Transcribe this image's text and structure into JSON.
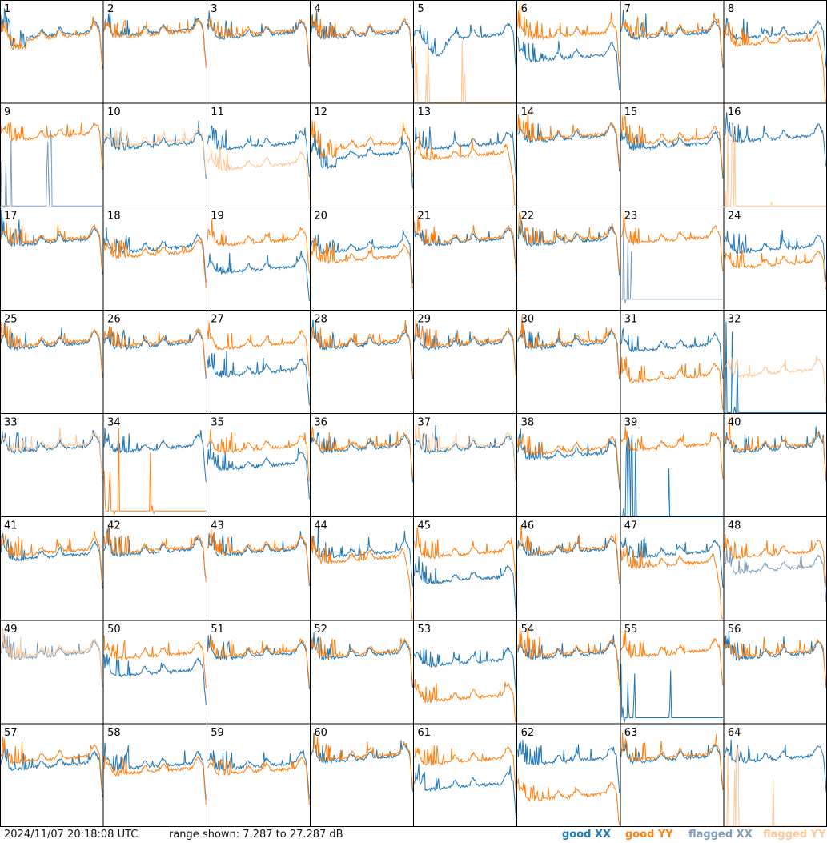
{
  "chart_data": {
    "type": "line",
    "layout": "8x8 small multiples of per-tile spectra",
    "timestamp": "2024/11/07 20:18:08 UTC",
    "range_text": "range shown: 7.287 to 27.287 dB",
    "range_db": [
      7.287,
      27.287
    ],
    "legend": [
      {
        "label": "good XX",
        "color": "#1f77b4"
      },
      {
        "label": "good YY",
        "color": "#ff7f0e"
      },
      {
        "label": "flagged XX",
        "color": "#7f9db9"
      },
      {
        "label": "flagged YY",
        "color": "#ffc896"
      }
    ],
    "tiles": [
      {
        "id": "1",
        "xx": "good",
        "yy": "good",
        "xx_level": 0.62,
        "yy_level": 0.6,
        "shape": "dip_then_flat_drop"
      },
      {
        "id": "2",
        "xx": "good",
        "yy": "good",
        "xx_level": 0.65,
        "yy_level": 0.63,
        "shape": "flat"
      },
      {
        "id": "3",
        "xx": "good",
        "yy": "good",
        "xx_level": 0.62,
        "yy_level": 0.64,
        "shape": "bumps"
      },
      {
        "id": "4",
        "xx": "good",
        "yy": "good",
        "xx_level": 0.62,
        "yy_level": 0.64,
        "shape": "bumps"
      },
      {
        "id": "5",
        "xx": "good",
        "yy": "flagged",
        "xx_level": 0.6,
        "yy_level": 0.0,
        "shape": "xx_dip"
      },
      {
        "id": "6",
        "xx": "good",
        "yy": "good",
        "xx_level": 0.4,
        "yy_level": 0.62,
        "shape": "xx_low"
      },
      {
        "id": "7",
        "xx": "good",
        "yy": "good",
        "xx_level": 0.62,
        "yy_level": 0.64,
        "shape": "bumps"
      },
      {
        "id": "8",
        "xx": "good",
        "yy": "good",
        "xx_level": 0.62,
        "yy_level": 0.55,
        "shape": "yy_drop_end"
      },
      {
        "id": "9",
        "xx": "flagged",
        "yy": "good",
        "xx_level": 0.0,
        "yy_level": 0.64,
        "shape": "xx_spikes"
      },
      {
        "id": "10",
        "xx": "good",
        "yy": "flagged",
        "xx_level": 0.55,
        "yy_level": 0.58,
        "shape": "flat"
      },
      {
        "id": "11",
        "xx": "good",
        "yy": "flagged",
        "xx_level": 0.55,
        "yy_level": 0.35,
        "shape": "yy_low"
      },
      {
        "id": "12",
        "xx": "good",
        "yy": "good",
        "xx_level": 0.45,
        "yy_level": 0.55,
        "shape": "dip_then_flat_drop"
      },
      {
        "id": "13",
        "xx": "good",
        "yy": "good",
        "xx_level": 0.55,
        "yy_level": 0.45,
        "shape": "yy_drop_end"
      },
      {
        "id": "14",
        "xx": "good",
        "yy": "good",
        "xx_level": 0.62,
        "yy_level": 0.64,
        "shape": "bumps"
      },
      {
        "id": "15",
        "xx": "good",
        "yy": "good",
        "xx_level": 0.55,
        "yy_level": 0.6,
        "shape": "bumps"
      },
      {
        "id": "16",
        "xx": "good",
        "yy": "flagged",
        "xx_level": 0.62,
        "yy_level": 0.0,
        "shape": "yy_spike"
      },
      {
        "id": "17",
        "xx": "good",
        "yy": "good",
        "xx_level": 0.62,
        "yy_level": 0.64,
        "shape": "bumps"
      },
      {
        "id": "18",
        "xx": "good",
        "yy": "good",
        "xx_level": 0.55,
        "yy_level": 0.5,
        "shape": "bumps"
      },
      {
        "id": "19",
        "xx": "good",
        "yy": "good",
        "xx_level": 0.35,
        "yy_level": 0.62,
        "shape": "xx_low"
      },
      {
        "id": "20",
        "xx": "good",
        "yy": "good",
        "xx_level": 0.55,
        "yy_level": 0.45,
        "shape": "bumps"
      },
      {
        "id": "21",
        "xx": "good",
        "yy": "good",
        "xx_level": 0.62,
        "yy_level": 0.64,
        "shape": "bumps"
      },
      {
        "id": "22",
        "xx": "good",
        "yy": "good",
        "xx_level": 0.62,
        "yy_level": 0.64,
        "shape": "bumps"
      },
      {
        "id": "23",
        "xx": "flagged",
        "yy": "good",
        "xx_level": 0.1,
        "yy_level": 0.64,
        "shape": "xx_spikes"
      },
      {
        "id": "24",
        "xx": "good",
        "yy": "good",
        "xx_level": 0.55,
        "yy_level": 0.4,
        "shape": "yy_low"
      },
      {
        "id": "25",
        "xx": "good",
        "yy": "good",
        "xx_level": 0.62,
        "yy_level": 0.64,
        "shape": "bumps"
      },
      {
        "id": "26",
        "xx": "good",
        "yy": "good",
        "xx_level": 0.62,
        "yy_level": 0.64,
        "shape": "bumps"
      },
      {
        "id": "27",
        "xx": "good",
        "yy": "good",
        "xx_level": 0.35,
        "yy_level": 0.62,
        "shape": "xx_low"
      },
      {
        "id": "28",
        "xx": "good",
        "yy": "good",
        "xx_level": 0.62,
        "yy_level": 0.64,
        "shape": "bumps"
      },
      {
        "id": "29",
        "xx": "good",
        "yy": "good",
        "xx_level": 0.62,
        "yy_level": 0.64,
        "shape": "bumps"
      },
      {
        "id": "30",
        "xx": "good",
        "yy": "good",
        "xx_level": 0.62,
        "yy_level": 0.64,
        "shape": "bumps"
      },
      {
        "id": "31",
        "xx": "good",
        "yy": "good",
        "xx_level": 0.6,
        "yy_level": 0.3,
        "shape": "yy_low"
      },
      {
        "id": "32",
        "xx": "good",
        "yy": "flagged",
        "xx_level": 0.0,
        "yy_level": 0.35,
        "shape": "yy_flag_bumps"
      },
      {
        "id": "33",
        "xx": "good",
        "yy": "flagged",
        "xx_level": 0.62,
        "yy_level": 0.64,
        "shape": "bumps"
      },
      {
        "id": "34",
        "xx": "good",
        "yy": "good",
        "xx_level": 0.62,
        "yy_level": 0.05,
        "shape": "yy_spikes"
      },
      {
        "id": "35",
        "xx": "good",
        "yy": "good",
        "xx_level": 0.45,
        "yy_level": 0.62,
        "shape": "xx_low"
      },
      {
        "id": "36",
        "xx": "good",
        "yy": "good",
        "xx_level": 0.62,
        "yy_level": 0.64,
        "shape": "bumps"
      },
      {
        "id": "37",
        "xx": "good",
        "yy": "flagged",
        "xx_level": 0.62,
        "yy_level": 0.64,
        "shape": "bumps"
      },
      {
        "id": "38",
        "xx": "good",
        "yy": "good",
        "xx_level": 0.55,
        "yy_level": 0.6,
        "shape": "bumps"
      },
      {
        "id": "39",
        "xx": "good",
        "yy": "good",
        "xx_level": 0.0,
        "yy_level": 0.64,
        "shape": "xx_spike"
      },
      {
        "id": "40",
        "xx": "good",
        "yy": "good",
        "xx_level": 0.62,
        "yy_level": 0.64,
        "shape": "bumps"
      },
      {
        "id": "41",
        "xx": "good",
        "yy": "good",
        "xx_level": 0.58,
        "yy_level": 0.62,
        "shape": "bumps"
      },
      {
        "id": "42",
        "xx": "good",
        "yy": "good",
        "xx_level": 0.62,
        "yy_level": 0.64,
        "shape": "bumps"
      },
      {
        "id": "43",
        "xx": "good",
        "yy": "good",
        "xx_level": 0.62,
        "yy_level": 0.64,
        "shape": "bumps"
      },
      {
        "id": "44",
        "xx": "good",
        "yy": "good",
        "xx_level": 0.6,
        "yy_level": 0.55,
        "shape": "yy_drop_end"
      },
      {
        "id": "45",
        "xx": "good",
        "yy": "good",
        "xx_level": 0.35,
        "yy_level": 0.6,
        "shape": "xx_low"
      },
      {
        "id": "46",
        "xx": "good",
        "yy": "good",
        "xx_level": 0.62,
        "yy_level": 0.64,
        "shape": "bumps"
      },
      {
        "id": "47",
        "xx": "good",
        "yy": "good",
        "xx_level": 0.6,
        "yy_level": 0.5,
        "shape": "yy_drop_end"
      },
      {
        "id": "48",
        "xx": "flagged",
        "yy": "good",
        "xx_level": 0.45,
        "yy_level": 0.6,
        "shape": "bumps"
      },
      {
        "id": "49",
        "xx": "flagged",
        "yy": "flagged",
        "xx_level": 0.62,
        "yy_level": 0.64,
        "shape": "bumps"
      },
      {
        "id": "50",
        "xx": "good",
        "yy": "good",
        "xx_level": 0.45,
        "yy_level": 0.62,
        "shape": "xx_low"
      },
      {
        "id": "51",
        "xx": "good",
        "yy": "good",
        "xx_level": 0.62,
        "yy_level": 0.64,
        "shape": "bumps"
      },
      {
        "id": "52",
        "xx": "good",
        "yy": "good",
        "xx_level": 0.62,
        "yy_level": 0.64,
        "shape": "bumps"
      },
      {
        "id": "53",
        "xx": "good",
        "yy": "good",
        "xx_level": 0.55,
        "yy_level": 0.2,
        "shape": "yy_low"
      },
      {
        "id": "54",
        "xx": "good",
        "yy": "good",
        "xx_level": 0.62,
        "yy_level": 0.64,
        "shape": "bumps"
      },
      {
        "id": "55",
        "xx": "good",
        "yy": "good",
        "xx_level": 0.05,
        "yy_level": 0.64,
        "shape": "xx_spikes"
      },
      {
        "id": "56",
        "xx": "good",
        "yy": "good",
        "xx_level": 0.62,
        "yy_level": 0.64,
        "shape": "bumps"
      },
      {
        "id": "57",
        "xx": "good",
        "yy": "good",
        "xx_level": 0.55,
        "yy_level": 0.62,
        "shape": "bumps"
      },
      {
        "id": "58",
        "xx": "good",
        "yy": "good",
        "xx_level": 0.55,
        "yy_level": 0.5,
        "shape": "bumps"
      },
      {
        "id": "59",
        "xx": "good",
        "yy": "good",
        "xx_level": 0.55,
        "yy_level": 0.5,
        "shape": "bumps"
      },
      {
        "id": "60",
        "xx": "good",
        "yy": "good",
        "xx_level": 0.62,
        "yy_level": 0.64,
        "shape": "bumps"
      },
      {
        "id": "61",
        "xx": "good",
        "yy": "good",
        "xx_level": 0.35,
        "yy_level": 0.6,
        "shape": "xx_low"
      },
      {
        "id": "62",
        "xx": "good",
        "yy": "good",
        "xx_level": 0.6,
        "yy_level": 0.25,
        "shape": "yy_low"
      },
      {
        "id": "63",
        "xx": "good",
        "yy": "good",
        "xx_level": 0.62,
        "yy_level": 0.64,
        "shape": "bumps"
      },
      {
        "id": "64",
        "xx": "good",
        "yy": "flagged",
        "xx_level": 0.62,
        "yy_level": 0.0,
        "shape": "yy_spike"
      }
    ]
  }
}
